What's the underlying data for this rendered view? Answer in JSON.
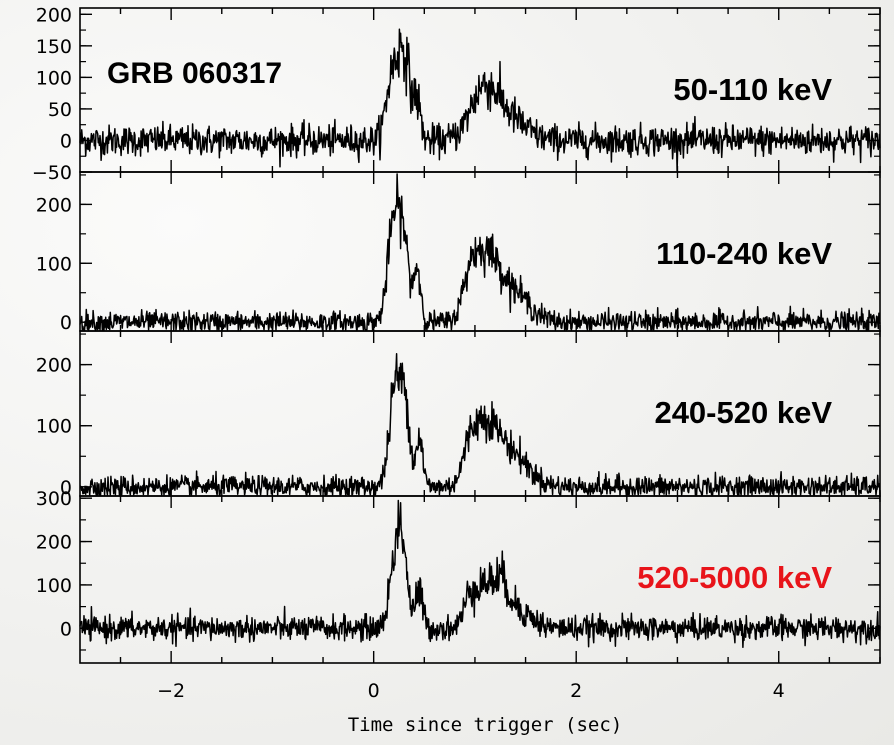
{
  "chart_data": {
    "type": "line",
    "title": "GRB 060317",
    "xlabel": "Time since trigger (sec)",
    "xlim": [
      -2.9,
      5.0
    ],
    "x_ticks": [
      -2,
      0,
      2,
      4
    ],
    "x_tick_labels": [
      "−2",
      "0",
      "2",
      "4"
    ],
    "panels": [
      {
        "name": "50-110 keV",
        "label_color": "#000000",
        "ylim": [
          -50,
          210
        ],
        "y_ticks": [
          -50,
          0,
          50,
          100,
          150,
          200
        ],
        "y_tick_labels": [
          "−50",
          "0",
          "50",
          "100",
          "150",
          "200"
        ],
        "noise_std": 12,
        "peaks": [
          [
            0.18,
            0.06,
            95
          ],
          [
            0.3,
            0.06,
            135
          ],
          [
            0.43,
            0.035,
            55
          ],
          [
            1.08,
            0.13,
            70
          ],
          [
            1.3,
            0.18,
            38
          ]
        ]
      },
      {
        "name": "110-240 keV",
        "label_color": "#000000",
        "ylim": [
          -15,
          255
        ],
        "y_ticks": [
          0,
          100,
          200
        ],
        "y_tick_labels": [
          "0",
          "100",
          "200"
        ],
        "noise_std": 9,
        "peaks": [
          [
            0.2,
            0.06,
            170
          ],
          [
            0.3,
            0.05,
            120
          ],
          [
            0.43,
            0.035,
            90
          ],
          [
            0.95,
            0.07,
            55
          ],
          [
            1.1,
            0.12,
            100
          ],
          [
            1.35,
            0.17,
            55
          ]
        ]
      },
      {
        "name": "240-520 keV",
        "label_color": "#000000",
        "ylim": [
          -15,
          255
        ],
        "y_ticks": [
          0,
          100,
          200
        ],
        "y_tick_labels": [
          "0",
          "100",
          "200"
        ],
        "noise_std": 9,
        "peaks": [
          [
            0.22,
            0.06,
            175
          ],
          [
            0.32,
            0.04,
            110
          ],
          [
            0.45,
            0.035,
            80
          ],
          [
            0.95,
            0.07,
            45
          ],
          [
            1.1,
            0.12,
            90
          ],
          [
            1.35,
            0.17,
            55
          ]
        ]
      },
      {
        "name": "520-5000 keV",
        "label_color": "#e8141a",
        "ylim": [
          -80,
          305
        ],
        "y_ticks": [
          0,
          100,
          200,
          300
        ],
        "y_tick_labels": [
          "0",
          "100",
          "200",
          "300"
        ],
        "noise_std": 14,
        "peaks": [
          [
            0.24,
            0.065,
            215
          ],
          [
            0.3,
            0.04,
            60
          ],
          [
            0.45,
            0.035,
            85
          ],
          [
            0.95,
            0.06,
            55
          ],
          [
            1.07,
            0.09,
            80
          ],
          [
            1.25,
            0.09,
            95
          ],
          [
            1.45,
            0.13,
            35
          ]
        ]
      }
    ],
    "grid": false,
    "legend": "none"
  }
}
